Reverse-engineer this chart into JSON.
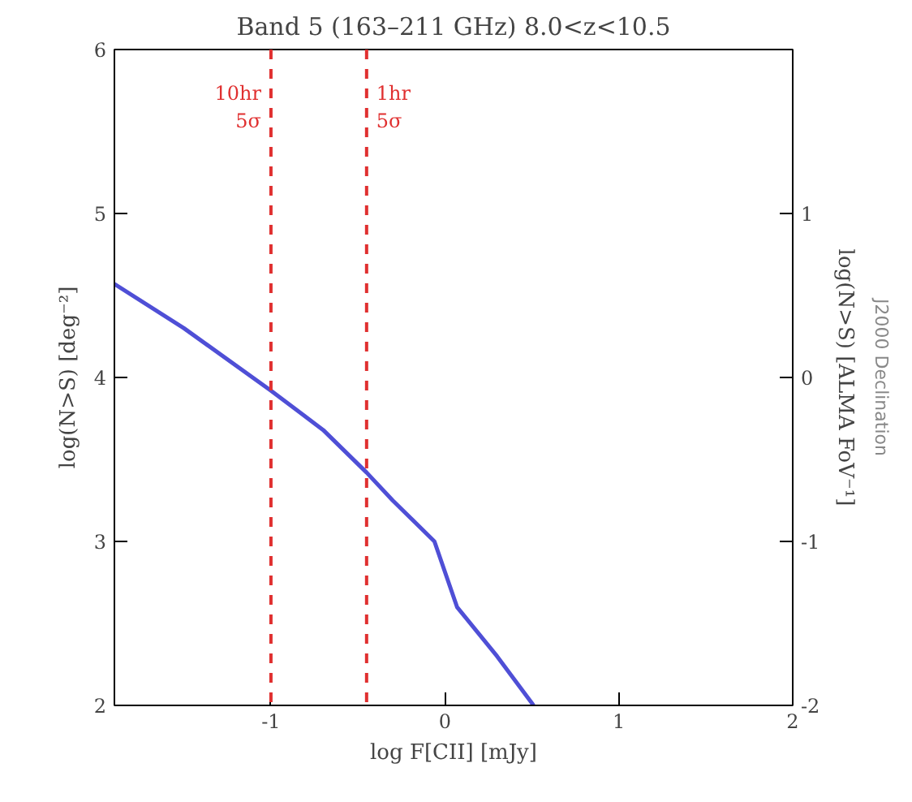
{
  "chart_data": {
    "type": "line",
    "title": "Band 5 (163–211 GHz) 8.0<z<10.5",
    "xlabel": "log F[CII] [mJy]",
    "ylabel": "log(N>S) [deg⁻²]",
    "y2label": "log(N>S) [ALMA FoV⁻¹]",
    "x": [
      -1.9,
      -1.5,
      -1.0,
      -0.7,
      -0.45,
      -0.3,
      -0.06,
      0.07,
      0.3,
      0.51
    ],
    "series": [
      {
        "color": "#4f4fd6",
        "values": [
          4.57,
          4.3,
          3.92,
          3.68,
          3.42,
          3.25,
          3.0,
          2.6,
          2.3,
          2.0
        ]
      }
    ],
    "xlim": [
      -1.9,
      2
    ],
    "xticks": [
      -1,
      0,
      1,
      2
    ],
    "ylim": [
      2,
      6
    ],
    "yticks": [
      2,
      3,
      4,
      5,
      6
    ],
    "y2lim": [
      -2,
      2
    ],
    "y2ticks": [
      -2,
      -1,
      0,
      1
    ],
    "ref_lines": [
      {
        "axis": "x",
        "value": -1.0,
        "label": "10hr\n5σ",
        "color": "#e03030",
        "line_style": "dashed"
      },
      {
        "axis": "x",
        "value": -0.45,
        "label": "1hr\n5σ",
        "color": "#e03030",
        "line_style": "dashed"
      }
    ],
    "annotations": [
      "J2000 Declination"
    ],
    "grid": false,
    "marker": "none",
    "line_style": "solid"
  }
}
